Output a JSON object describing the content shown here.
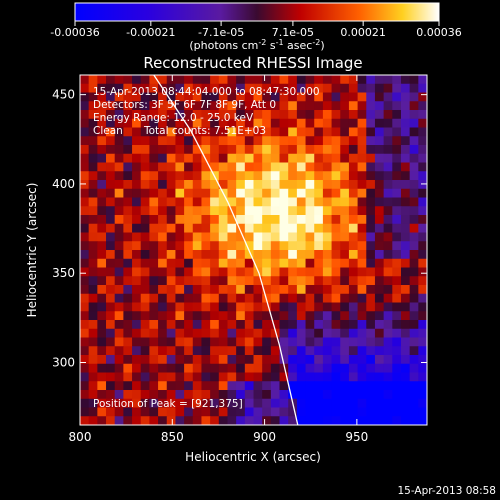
{
  "chart_data": {
    "type": "heatmap",
    "title": "Reconstructed RHESSI Image",
    "xlabel": "Heliocentric X (arcsec)",
    "ylabel": "Heliocentric Y (arcsec)",
    "xlim": [
      800,
      988
    ],
    "ylim": [
      265,
      461
    ],
    "x_ticks": [
      800,
      850,
      900,
      950
    ],
    "y_ticks": [
      300,
      350,
      400,
      450
    ],
    "colorbar": {
      "range": [
        -0.00036,
        0.00036
      ],
      "tick_values": [
        -0.00036,
        -0.00021,
        -7.1e-05,
        7.1e-05,
        0.00021,
        0.00036
      ],
      "tick_labels": [
        "-0.00036",
        "-0.00021",
        "-7.1e-05",
        "7.1e-05",
        "0.00021",
        "0.00036"
      ],
      "unit_text": "(photons cm",
      "unit_exp1": "-2",
      "unit_mid": " s",
      "unit_exp2": "-1",
      "unit_mid2": " asec",
      "unit_exp3": "-2",
      "unit_close": ")"
    },
    "annotations": {
      "time_range": "15-Apr-2013 08:44:04.000 to 08:47:30.000",
      "detectors": "Detectors: 3F 5F 6F 7F 8F 9F, Att 0",
      "energy": "Energy Range: 12.0 - 25.0 keV",
      "clean_label": "Clean",
      "total_counts": "Total counts: 7.51E+03",
      "peak": "Position of Peak = [921,375]"
    },
    "peak_position": [
      921,
      375
    ],
    "limb_curve": [
      [
        840,
        461
      ],
      [
        860,
        430
      ],
      [
        880,
        390
      ],
      [
        897,
        350
      ],
      [
        908,
        310
      ],
      [
        918,
        265
      ]
    ],
    "grid": false,
    "colormap": "blue-purple-red-yellow-white"
  },
  "footer": {
    "timestamp": "15-Apr-2013 08:58"
  },
  "colors": {
    "background": "#000000",
    "limb": "#ffffff"
  }
}
